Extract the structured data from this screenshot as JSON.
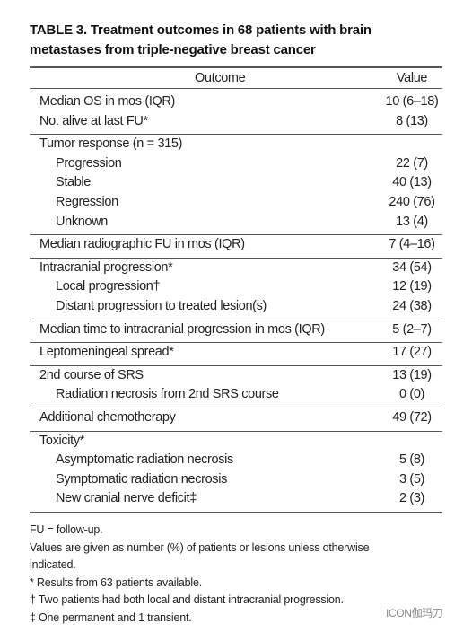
{
  "title": {
    "lines": [
      "TABLE 3. Treatment outcomes in 68 patients with brain",
      "metastases from triple-negative breast cancer"
    ]
  },
  "table": {
    "header": [
      "Outcome",
      "Value"
    ],
    "groups": [
      {
        "rows": [
          {
            "label": "Median OS in mos (IQR)",
            "value": "10 (6–18)"
          },
          {
            "label": "No. alive at last FU*",
            "value": "8 (13)"
          }
        ]
      },
      {
        "rows": [
          {
            "label": "Tumor response (n = 315)"
          }
        ],
        "subrows": [
          {
            "label": "Progression",
            "value": "22 (7)"
          },
          {
            "label": "Stable",
            "value": "40 (13)"
          },
          {
            "label": "Regression",
            "value": "240 (76)"
          },
          {
            "label": "Unknown",
            "value": "13 (4)"
          }
        ]
      },
      {
        "rows": [
          {
            "label": "Median radiographic FU in mos (IQR)",
            "value": "7 (4–16)"
          }
        ]
      },
      {
        "rows": [
          {
            "label": "Intracranial progression*",
            "value": "34 (54)"
          }
        ],
        "subrows": [
          {
            "label": "Local progression†",
            "value": "12 (19)"
          },
          {
            "label": "Distant progression to treated lesion(s)",
            "value": "24 (38)"
          }
        ]
      },
      {
        "rows": [
          {
            "label": "Median time to intracranial progression in mos (IQR)",
            "value": "5 (2–7)"
          }
        ]
      },
      {
        "rows": [
          {
            "label": "Leptomeningeal spread*",
            "value": "17 (27)"
          }
        ]
      },
      {
        "rows": [
          {
            "label": "2nd course of SRS",
            "value": "13 (19)"
          }
        ],
        "subrows": [
          {
            "label": "Radiation necrosis from 2nd SRS course",
            "value": "0 (0)"
          }
        ]
      },
      {
        "rows": [
          {
            "label": "Additional chemotherapy",
            "value": "49 (72)"
          }
        ]
      },
      {
        "rows": [
          {
            "label": "Toxicity*"
          }
        ],
        "subrows": [
          {
            "label": "Asymptomatic radiation necrosis",
            "value": "5 (8)"
          },
          {
            "label": "Symptomatic radiation necrosis",
            "value": "3 (5)"
          },
          {
            "label": "New cranial nerve deficit‡",
            "value": "2 (3)"
          }
        ]
      }
    ]
  },
  "footnotes": [
    "FU = follow-up.",
    "Values are given as number (%) of patients or lesions unless otherwise",
    "indicated.",
    "* Results from 63 patients available.",
    "† Two patients had both local and distant intracranial progression.",
    "‡ One permanent and 1 transient."
  ],
  "watermark": "ICON伽玛刀"
}
